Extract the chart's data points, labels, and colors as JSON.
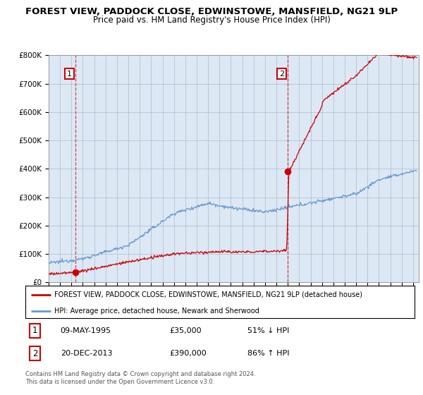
{
  "title": "FOREST VIEW, PADDOCK CLOSE, EDWINSTOWE, MANSFIELD, NG21 9LP",
  "subtitle": "Price paid vs. HM Land Registry's House Price Index (HPI)",
  "ylim": [
    0,
    800000
  ],
  "yticks": [
    0,
    100000,
    200000,
    300000,
    400000,
    500000,
    600000,
    700000,
    800000
  ],
  "ytick_labels": [
    "£0",
    "£100K",
    "£200K",
    "£300K",
    "£400K",
    "£500K",
    "£600K",
    "£700K",
    "£800K"
  ],
  "xlim_start": 1993.0,
  "xlim_end": 2025.5,
  "sale1_date": 1995.36,
  "sale1_price": 35000,
  "sale2_date": 2013.97,
  "sale2_price": 390000,
  "hpi_color": "#6699cc",
  "price_color": "#cc0000",
  "background_color": "#dde8f5",
  "hatch_color": "#c5d5e8",
  "grid_color": "#aabbcc",
  "legend_line1": "FOREST VIEW, PADDOCK CLOSE, EDWINSTOWE, MANSFIELD, NG21 9LP (detached house)",
  "legend_line2": "HPI: Average price, detached house, Newark and Sherwood",
  "footer": "Contains HM Land Registry data © Crown copyright and database right 2024.\nThis data is licensed under the Open Government Licence v3.0."
}
